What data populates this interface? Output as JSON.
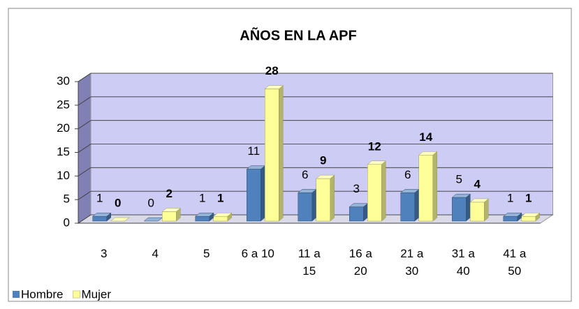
{
  "chart_data": {
    "type": "bar",
    "title": "AÑOS EN LA APF",
    "categories": [
      "3",
      "4",
      "5",
      "6 a 10",
      "11 a 15",
      "16 a 20",
      "21 a 30",
      "31 a 40",
      "41 a 50"
    ],
    "series": [
      {
        "name": "Hombre",
        "color": "#4f81bd",
        "values": [
          1,
          0,
          1,
          11,
          6,
          3,
          6,
          5,
          1
        ]
      },
      {
        "name": "Mujer",
        "color": "#ffff99",
        "values": [
          0,
          2,
          1,
          28,
          9,
          12,
          14,
          4,
          1
        ]
      }
    ],
    "ylim": [
      0,
      30
    ],
    "yticks": [
      0,
      5,
      10,
      15,
      20,
      25,
      30
    ],
    "grid": true,
    "legend": "bottom-left"
  }
}
